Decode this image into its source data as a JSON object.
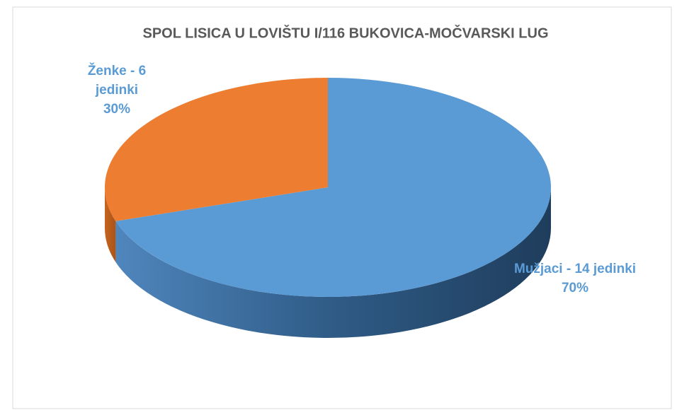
{
  "chart_data": {
    "type": "pie",
    "title": "SPOL LISICA U LOVIŠTU I/116 BUKOVICA-MOČVARSKI LUG",
    "categories": [
      "Mužjaci - 14 jedinki",
      "Ženke - 6 jedinki"
    ],
    "values": [
      70,
      30
    ],
    "value_labels": [
      "70%",
      "30%"
    ],
    "colors": [
      "#5b9bd5",
      "#ed7d31"
    ],
    "label_color": "#5b9bd5"
  }
}
